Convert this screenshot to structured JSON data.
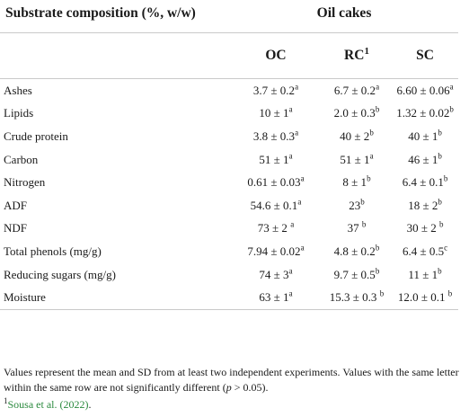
{
  "table": {
    "header": {
      "composition_label": "Substrate composition (%, w/w)",
      "group_label": "Oil cakes",
      "columns": [
        {
          "label": "OC",
          "sup": ""
        },
        {
          "label": "RC",
          "sup": "1"
        },
        {
          "label": "SC",
          "sup": ""
        }
      ]
    },
    "rows": [
      {
        "label": "Ashes",
        "cells": [
          {
            "v": "3.7 ± 0.2",
            "s": "a"
          },
          {
            "v": "6.7 ± 0.2",
            "s": "a"
          },
          {
            "v": "6.60 ± 0.06",
            "s": "a"
          }
        ]
      },
      {
        "label": "Lipids",
        "cells": [
          {
            "v": "10 ± 1",
            "s": "a"
          },
          {
            "v": "2.0 ± 0.3",
            "s": "b"
          },
          {
            "v": "1.32 ± 0.02",
            "s": "b"
          }
        ]
      },
      {
        "label": "Crude protein",
        "cells": [
          {
            "v": "3.8 ± 0.3",
            "s": "a"
          },
          {
            "v": "40 ± 2",
            "s": "b"
          },
          {
            "v": "40 ± 1",
            "s": "b"
          }
        ]
      },
      {
        "label": "Carbon",
        "cells": [
          {
            "v": "51 ± 1",
            "s": "a"
          },
          {
            "v": "51 ± 1",
            "s": "a"
          },
          {
            "v": "46 ± 1",
            "s": "b"
          }
        ]
      },
      {
        "label": "Nitrogen",
        "cells": [
          {
            "v": "0.61 ± 0.03",
            "s": "a"
          },
          {
            "v": "8 ± 1",
            "s": "b"
          },
          {
            "v": "6.4 ± 0.1",
            "s": "b"
          }
        ]
      },
      {
        "label": "ADF",
        "cells": [
          {
            "v": "54.6 ± 0.1",
            "s": "a"
          },
          {
            "v": "23",
            "s": "b"
          },
          {
            "v": "18 ± 2",
            "s": "b"
          }
        ]
      },
      {
        "label": "NDF",
        "cells": [
          {
            "v": "73 ± 2 ",
            "s": "a"
          },
          {
            "v": "37 ",
            "s": "b"
          },
          {
            "v": "30 ± 2 ",
            "s": "b"
          }
        ]
      },
      {
        "label": "Total phenols (mg/g)",
        "cells": [
          {
            "v": "7.94 ± 0.02",
            "s": "a"
          },
          {
            "v": "4.8 ± 0.2",
            "s": "b"
          },
          {
            "v": "6.4 ± 0.5",
            "s": "c"
          }
        ]
      },
      {
        "label": "Reducing sugars (mg/g)",
        "cells": [
          {
            "v": "74 ± 3",
            "s": "a"
          },
          {
            "v": "9.7 ± 0.5",
            "s": "b"
          },
          {
            "v": "11 ± 1",
            "s": "b"
          }
        ]
      },
      {
        "label": "Moisture",
        "cells": [
          {
            "v": "63 ± 1",
            "s": "a"
          },
          {
            "v": "15.3 ± 0.3 ",
            "s": "b"
          },
          {
            "v": "12.0 ± 0.1 ",
            "s": "b"
          }
        ]
      }
    ]
  },
  "footnotes": {
    "note": "Values represent the mean and SD from at least two independent experiments. Values with the same letter within the same row are not significantly different (p > 0.05).",
    "ref_marker": "1",
    "ref_text": "Sousa et al. (2022)",
    "ref_tail": ".",
    "ref_color": "#2b8a3e"
  }
}
